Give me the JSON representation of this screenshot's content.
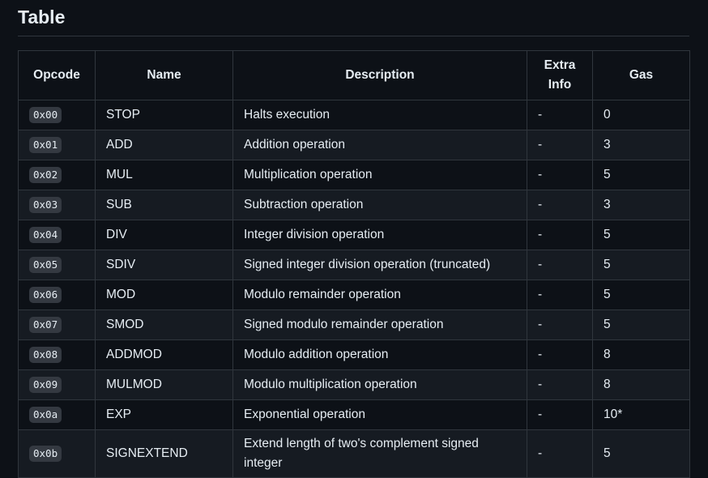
{
  "heading": "Table",
  "table": {
    "headers": {
      "opcode": "Opcode",
      "name": "Name",
      "description": "Description",
      "extra_line1": "Extra",
      "extra_line2": "Info",
      "gas": "Gas"
    },
    "rows": [
      {
        "opcode": "0x00",
        "name": "STOP",
        "description": "Halts execution",
        "extra": "-",
        "gas": "0"
      },
      {
        "opcode": "0x01",
        "name": "ADD",
        "description": "Addition operation",
        "extra": "-",
        "gas": "3"
      },
      {
        "opcode": "0x02",
        "name": "MUL",
        "description": "Multiplication operation",
        "extra": "-",
        "gas": "5"
      },
      {
        "opcode": "0x03",
        "name": "SUB",
        "description": "Subtraction operation",
        "extra": "-",
        "gas": "3"
      },
      {
        "opcode": "0x04",
        "name": "DIV",
        "description": "Integer division operation",
        "extra": "-",
        "gas": "5"
      },
      {
        "opcode": "0x05",
        "name": "SDIV",
        "description": "Signed integer division operation (truncated)",
        "extra": "-",
        "gas": "5"
      },
      {
        "opcode": "0x06",
        "name": "MOD",
        "description": "Modulo remainder operation",
        "extra": "-",
        "gas": "5"
      },
      {
        "opcode": "0x07",
        "name": "SMOD",
        "description": "Signed modulo remainder operation",
        "extra": "-",
        "gas": "5"
      },
      {
        "opcode": "0x08",
        "name": "ADDMOD",
        "description": "Modulo addition operation",
        "extra": "-",
        "gas": "8"
      },
      {
        "opcode": "0x09",
        "name": "MULMOD",
        "description": "Modulo multiplication operation",
        "extra": "-",
        "gas": "8"
      },
      {
        "opcode": "0x0a",
        "name": "EXP",
        "description": "Exponential operation",
        "extra": "-",
        "gas": "10*"
      },
      {
        "opcode": "0x0b",
        "name": "SIGNEXTEND",
        "description": "Extend length of two's complement signed integer",
        "extra": "-",
        "gas": "5"
      }
    ]
  }
}
